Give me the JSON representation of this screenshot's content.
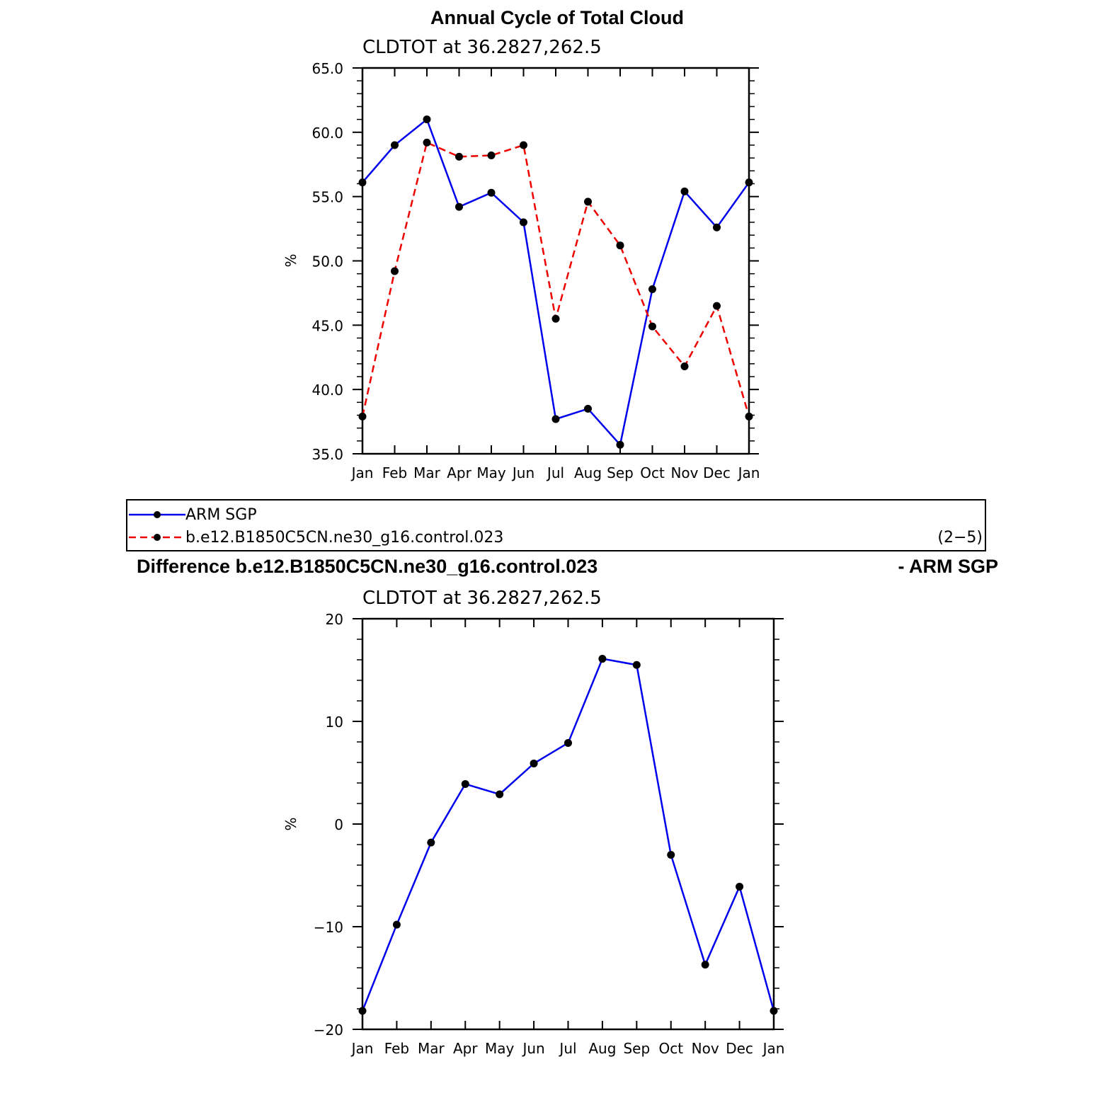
{
  "top_title": "Annual Cycle of Total Cloud",
  "bottom_title_left": "Difference b.e12.B1850C5CN.ne30_g16.control.023",
  "bottom_title_right": "- ARM SGP",
  "legend": {
    "item_obs": "ARM SGP",
    "item_model": "b.e12.B1850C5CN.ne30_g16.control.023",
    "panel_index": "(2−5)"
  },
  "colors": {
    "obs": "#0000ee",
    "model": "#ee0000",
    "marker": "#000000"
  },
  "chart_data": [
    {
      "type": "line",
      "subtitle": "CLDTOT at 36.2827,262.5",
      "ylabel": "%",
      "categories": [
        "Jan",
        "Feb",
        "Mar",
        "Apr",
        "May",
        "Jun",
        "Jul",
        "Aug",
        "Sep",
        "Oct",
        "Nov",
        "Dec",
        "Jan"
      ],
      "ylim": [
        35.0,
        65.0
      ],
      "yticks": [
        "35.0",
        "40.0",
        "45.0",
        "50.0",
        "55.0",
        "60.0",
        "65.0"
      ],
      "grid": false,
      "series": [
        {
          "name": "ARM SGP",
          "style": "solid",
          "values": [
            56.1,
            59.0,
            61.0,
            54.2,
            55.3,
            53.0,
            37.7,
            38.5,
            35.7,
            47.8,
            55.4,
            52.6,
            56.1
          ]
        },
        {
          "name": "b.e12.B1850C5CN.ne30_g16.control.023",
          "style": "dashed",
          "values": [
            37.9,
            49.2,
            59.2,
            58.1,
            58.2,
            59.0,
            45.5,
            54.6,
            51.2,
            44.9,
            41.8,
            46.5,
            37.9
          ]
        }
      ]
    },
    {
      "type": "line",
      "subtitle": "CLDTOT at 36.2827,262.5",
      "ylabel": "%",
      "categories": [
        "Jan",
        "Feb",
        "Mar",
        "Apr",
        "May",
        "Jun",
        "Jul",
        "Aug",
        "Sep",
        "Oct",
        "Nov",
        "Dec",
        "Jan"
      ],
      "ylim": [
        -20,
        20
      ],
      "yticks": [
        "−20",
        "−10",
        "0",
        "10",
        "20"
      ],
      "grid": false,
      "series": [
        {
          "style": "solid",
          "values": [
            -18.2,
            -9.8,
            -1.8,
            3.9,
            2.9,
            5.9,
            7.9,
            16.1,
            15.5,
            -3.0,
            -13.7,
            -6.1,
            -18.2
          ]
        }
      ]
    }
  ]
}
